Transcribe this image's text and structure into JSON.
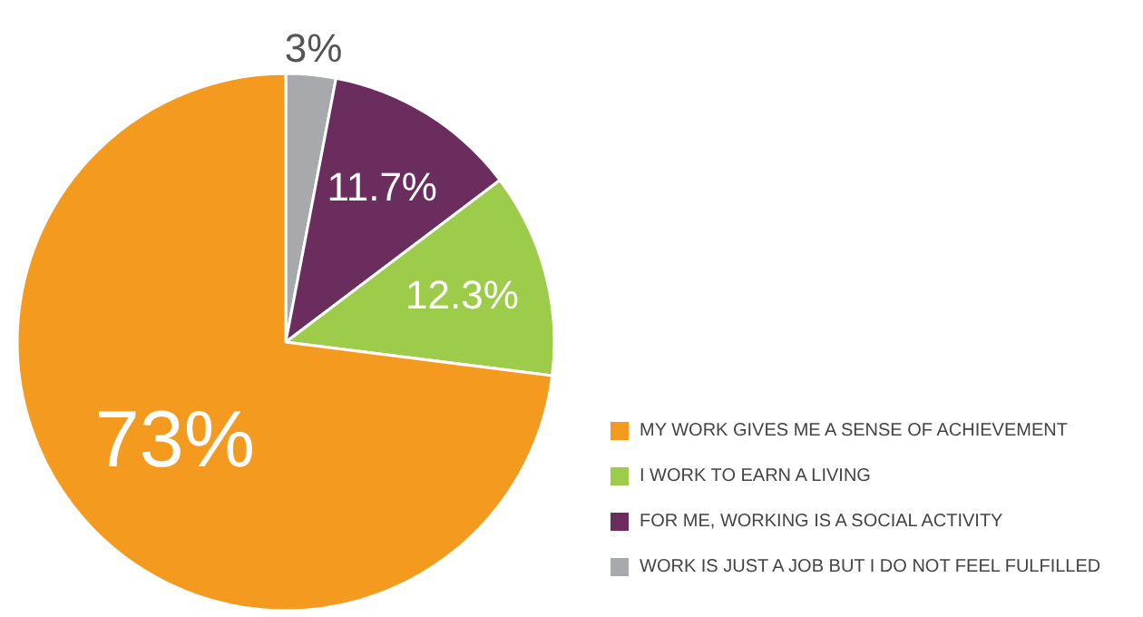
{
  "chart_data": {
    "type": "pie",
    "categories": [
      "MY WORK GIVES ME A SENSE OF ACHIEVEMENT",
      "I WORK TO EARN A LIVING",
      "FOR ME, WORKING IS A SOCIAL ACTIVITY",
      "WORK IS JUST A JOB BUT I DO NOT FEEL FULFILLED"
    ],
    "values": [
      73,
      12.3,
      11.7,
      3
    ],
    "colors": [
      "#f39a1f",
      "#9ccc4a",
      "#6b2c5e",
      "#a7a9ac"
    ],
    "value_labels": [
      "73%",
      "12.3%",
      "11.7%",
      "3%"
    ],
    "legend": "bottom right"
  }
}
